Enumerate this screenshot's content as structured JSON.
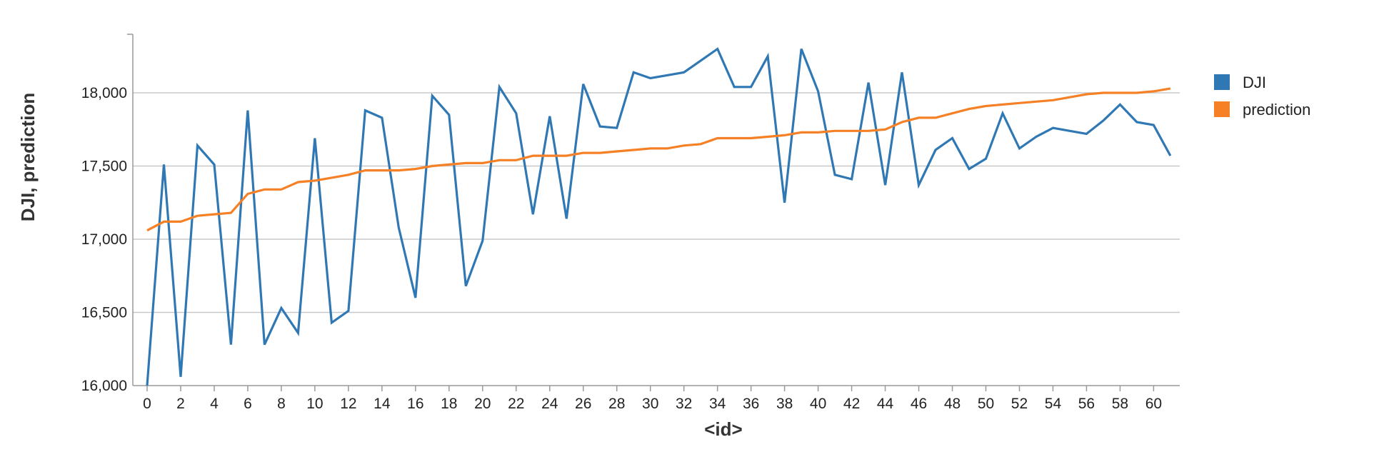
{
  "chart_data": {
    "type": "line",
    "xlabel": "<id>",
    "ylabel": "DJI, prediction",
    "xlim": [
      0,
      62
    ],
    "ylim": [
      16000,
      18400
    ],
    "x_ticks": [
      0,
      2,
      4,
      6,
      8,
      10,
      12,
      14,
      16,
      18,
      20,
      22,
      24,
      26,
      28,
      30,
      32,
      34,
      36,
      38,
      40,
      42,
      44,
      46,
      48,
      50,
      52,
      54,
      56,
      58,
      60
    ],
    "y_ticks": [
      16000,
      16500,
      17000,
      17500,
      18000
    ],
    "y_tick_labels": [
      "16,000",
      "16,500",
      "17,000",
      "17,500",
      "18,000"
    ],
    "grid": "horizontal",
    "legend_position": "right",
    "x": [
      0,
      1,
      2,
      3,
      4,
      5,
      6,
      7,
      8,
      9,
      10,
      11,
      12,
      13,
      14,
      15,
      16,
      17,
      18,
      19,
      20,
      21,
      22,
      23,
      24,
      25,
      26,
      27,
      28,
      29,
      30,
      31,
      32,
      33,
      34,
      35,
      36,
      37,
      38,
      39,
      40,
      41,
      42,
      43,
      44,
      45,
      46,
      47,
      48,
      49,
      50,
      51,
      52,
      53,
      54,
      55,
      56,
      57,
      58,
      59,
      60,
      61
    ],
    "series": [
      {
        "name": "DJI",
        "color": "#2f78b4",
        "values": [
          16000,
          17510,
          16060,
          17640,
          17510,
          16280,
          17880,
          16280,
          16530,
          16360,
          17690,
          16430,
          16510,
          17880,
          17830,
          17080,
          16600,
          17980,
          17850,
          16680,
          16990,
          18040,
          17860,
          17170,
          17840,
          17140,
          18060,
          17770,
          17760,
          18140,
          18100,
          18120,
          18140,
          18220,
          18300,
          18040,
          18040,
          18250,
          17250,
          18300,
          18010,
          17440,
          17410,
          18070,
          17370,
          18140,
          17370,
          17610,
          17690,
          17480,
          17550,
          17860,
          17620,
          17700,
          17760,
          17740,
          17720,
          17810,
          17920,
          17800,
          17780,
          17570
        ]
      },
      {
        "name": "prediction",
        "color": "#f58025",
        "values": [
          17060,
          17120,
          17120,
          17160,
          17170,
          17180,
          17310,
          17340,
          17340,
          17390,
          17400,
          17420,
          17440,
          17470,
          17470,
          17470,
          17480,
          17500,
          17510,
          17520,
          17520,
          17540,
          17540,
          17570,
          17570,
          17570,
          17590,
          17590,
          17600,
          17610,
          17620,
          17620,
          17640,
          17650,
          17690,
          17690,
          17690,
          17700,
          17710,
          17730,
          17730,
          17740,
          17740,
          17740,
          17750,
          17800,
          17830,
          17830,
          17860,
          17890,
          17910,
          17920,
          17930,
          17940,
          17950,
          17970,
          17990,
          18000,
          18000,
          18000,
          18010,
          18030
        ]
      }
    ]
  }
}
